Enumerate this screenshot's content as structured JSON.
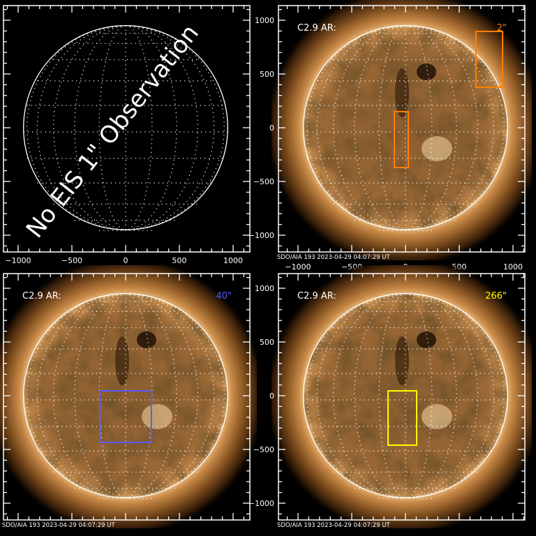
{
  "figure": {
    "caption": "SDO/AIA 193   2023-04-29 04:07:29 UT",
    "colors": {
      "frame": "#ffffff",
      "disk": "#8a5a2c",
      "corona": "#e0aa66"
    },
    "axis": {
      "x_ticks": [
        -1000,
        -500,
        0,
        500,
        1000
      ],
      "y_ticks": [
        1000,
        500,
        0,
        -500,
        -1000
      ],
      "x_tick_labels": [
        "−1000",
        "−500",
        "0",
        "500",
        "1000"
      ],
      "y_tick_labels": [
        "1000",
        "500",
        "0",
        "−500",
        "−1000"
      ],
      "unit": "arcsec"
    },
    "panels": [
      {
        "id": "top-left",
        "has_image": false,
        "message": "No EIS 1\" Observation",
        "show_x_labels": true,
        "show_y_labels": false
      },
      {
        "id": "top-right",
        "has_image": true,
        "label": "C2.9 AR:",
        "value_label": "2\"",
        "value_color": "#ff7f00",
        "boxes": [
          {
            "x": [
              -104,
              26
            ],
            "y": [
              -370,
              150
            ],
            "color": "#ff7f00"
          },
          {
            "x": [
              656,
              903
            ],
            "y": [
              377,
              896
            ],
            "color": "#ff7f00"
          }
        ],
        "show_x_labels": true,
        "show_y_labels": true,
        "show_caption": true
      },
      {
        "id": "bottom-left",
        "has_image": true,
        "label": "C2.9 AR:",
        "value_label": "40\"",
        "value_color": "#5a5aff",
        "boxes": [
          {
            "x": [
              -240,
              240
            ],
            "y": [
              -435,
              45
            ],
            "color": "#5a5aff"
          }
        ],
        "show_x_labels": false,
        "show_y_labels": false,
        "show_caption": true
      },
      {
        "id": "bottom-right",
        "has_image": true,
        "label": "C2.9 AR:",
        "value_label": "266\"",
        "value_color": "#ffff00",
        "boxes": [
          {
            "x": [
              -162,
              104
            ],
            "y": [
              -460,
              45
            ],
            "color": "#ffff00"
          }
        ],
        "show_x_labels": false,
        "show_y_labels": true,
        "show_caption": true
      }
    ]
  }
}
